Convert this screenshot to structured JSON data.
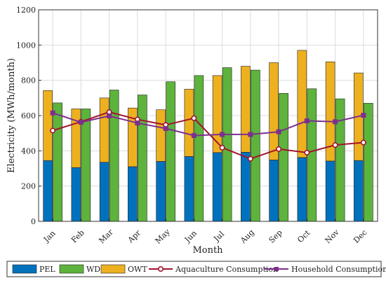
{
  "chart_data": {
    "type": "bar",
    "stacked_bar_series": [
      "PEL",
      "OWT"
    ],
    "xlabel": "Month",
    "ylabel": "Electricity (MWh/month)",
    "ylim": [
      0,
      1200
    ],
    "yticks": [
      0,
      200,
      400,
      600,
      800,
      1000,
      1200
    ],
    "grid": true,
    "legend_position": "bottom",
    "categories": [
      "Jan",
      "Feb",
      "Mar",
      "Apr",
      "May",
      "Jun",
      "Jul",
      "Aug",
      "Sep",
      "Oct",
      "Nov",
      "Dec"
    ],
    "series": [
      {
        "name": "PEL",
        "kind": "bar-stack-bottom",
        "color": "#0072BD",
        "values": [
          345,
          305,
          335,
          310,
          340,
          368,
          390,
          392,
          348,
          362,
          342,
          345
        ]
      },
      {
        "name": "WD",
        "kind": "bar",
        "color": "#5DB33C",
        "values": [
          672,
          638,
          745,
          717,
          792,
          827,
          872,
          858,
          726,
          752,
          695,
          670
        ]
      },
      {
        "name": "OWT",
        "kind": "bar-stack-top",
        "color": "#EDB120",
        "values": [
          397,
          333,
          365,
          333,
          293,
          382,
          437,
          488,
          552,
          608,
          563,
          497
        ]
      },
      {
        "name": "Aquaculture Consumption",
        "kind": "line",
        "marker": "circle",
        "color": "#A2142F",
        "values": [
          515,
          565,
          620,
          578,
          547,
          585,
          418,
          355,
          410,
          390,
          433,
          447
        ]
      },
      {
        "name": "Household Consumption",
        "kind": "line",
        "marker": "square",
        "color": "#7E2F8E",
        "values": [
          615,
          562,
          598,
          558,
          527,
          487,
          493,
          493,
          508,
          570,
          565,
          602
        ]
      }
    ]
  }
}
